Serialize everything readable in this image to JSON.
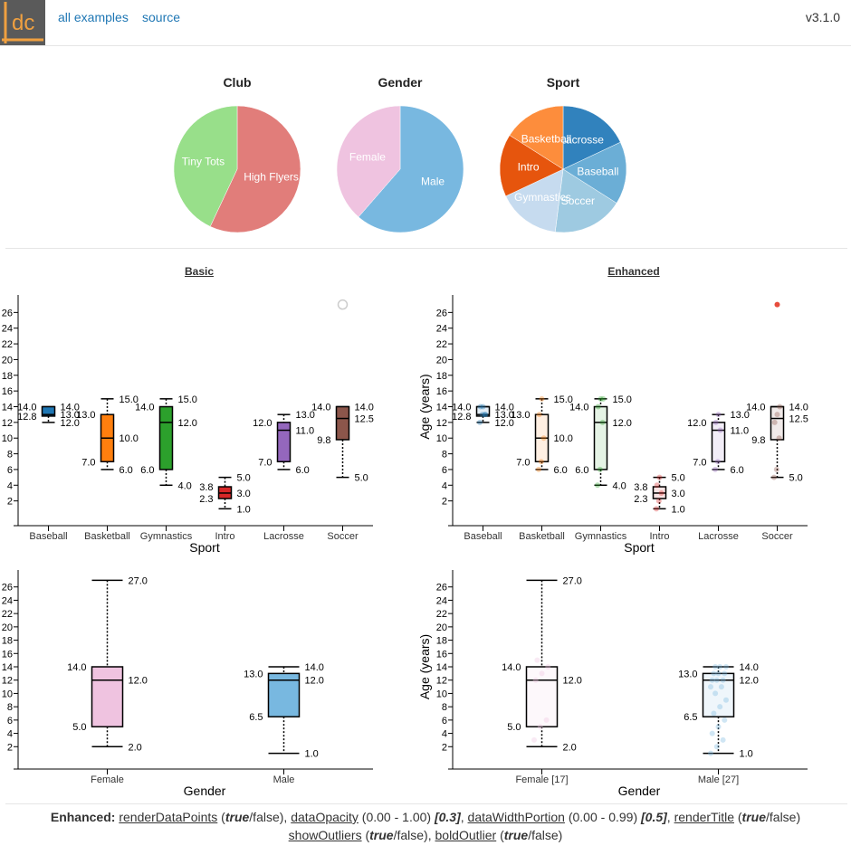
{
  "header": {
    "logo_text": "dc",
    "links": [
      "all examples",
      "source"
    ],
    "version": "v3.1.0"
  },
  "pies": [
    {
      "title": "Club",
      "slices": [
        {
          "label": "High Flyers",
          "value": 57,
          "color": "#e17d7a"
        },
        {
          "label": "Tiny Tots",
          "value": 43,
          "color": "#98df8a"
        }
      ]
    },
    {
      "title": "Gender",
      "slices": [
        {
          "label": "Male",
          "value": 61.4,
          "color": "#78b8e0"
        },
        {
          "label": "Female",
          "value": 38.6,
          "color": "#efc3e0"
        }
      ]
    },
    {
      "title": "Sport",
      "slices": [
        {
          "label": "Lacrosse",
          "value": 18,
          "color": "#3182bd"
        },
        {
          "label": "Baseball",
          "value": 16,
          "color": "#6baed6"
        },
        {
          "label": "Soccer",
          "value": 18,
          "color": "#9ecae1"
        },
        {
          "label": "Gymnastics",
          "value": 16,
          "color": "#c6dbef"
        },
        {
          "label": "Intro",
          "value": 16,
          "color": "#e6550d"
        },
        {
          "label": "Basketball",
          "value": 16,
          "color": "#fd8d3c"
        }
      ]
    }
  ],
  "sections": {
    "basic": "Basic",
    "enhanced": "Enhanced"
  },
  "chart_data": [
    {
      "type": "box",
      "name": "basic-sport",
      "xlabel": "Sport",
      "ylabel": "",
      "ylim": [
        0,
        28
      ],
      "yticks": [
        2,
        4,
        6,
        8,
        10,
        12,
        14,
        16,
        18,
        20,
        22,
        24,
        26
      ],
      "boxes": [
        {
          "cat": "Baseball",
          "color": "#1f77b4",
          "min": 12.0,
          "q1": 12.8,
          "median": 13.0,
          "q3": 14.0,
          "max": 14.0,
          "labels": {
            "min": "12.0",
            "q1": "12.8",
            "median": "13.0",
            "q3": "14.0",
            "max": "14.0"
          }
        },
        {
          "cat": "Basketball",
          "color": "#ff7f0e",
          "min": 6.0,
          "q1": 7.0,
          "median": 10.0,
          "q3": 13.0,
          "max": 15.0,
          "labels": {
            "min": "6.0",
            "q1": "7.0",
            "median": "10.0",
            "q3": "13.0",
            "max": "15.0"
          }
        },
        {
          "cat": "Gymnastics",
          "color": "#2ca02c",
          "min": 4.0,
          "q1": 6.0,
          "median": 12.0,
          "q3": 14.0,
          "max": 15.0,
          "labels": {
            "min": "4.0",
            "q1": "6.0",
            "median": "12.0",
            "q3": "14.0",
            "max": "15.0"
          }
        },
        {
          "cat": "Intro",
          "color": "#d62728",
          "min": 1.0,
          "q1": 2.3,
          "median": 3.0,
          "q3": 3.8,
          "max": 5.0,
          "labels": {
            "min": "1.0",
            "q1": "2.3",
            "median": "3.0",
            "q3": "3.8",
            "max": "5.0"
          }
        },
        {
          "cat": "Lacrosse",
          "color": "#9467bd",
          "min": 6.0,
          "q1": 7.0,
          "median": 11.0,
          "q3": 12.0,
          "max": 13.0,
          "labels": {
            "min": "6.0",
            "q1": "7.0",
            "median": "11.0",
            "q3": "12.0",
            "max": "13.0"
          }
        },
        {
          "cat": "Soccer",
          "color": "#8c564b",
          "min": 5.0,
          "q1": 9.8,
          "median": 12.5,
          "q3": 14.0,
          "max": 14.0,
          "labels": {
            "min": "5.0",
            "q1": "9.8",
            "median": "12.5",
            "q3": "14.0",
            "max": "14.0"
          },
          "outliers": [
            27
          ]
        }
      ]
    },
    {
      "type": "box",
      "name": "enhanced-sport",
      "xlabel": "Sport",
      "ylabel": "Age (years)",
      "ylim": [
        0,
        28
      ],
      "yticks": [
        2,
        4,
        6,
        8,
        10,
        12,
        14,
        16,
        18,
        20,
        22,
        24,
        26
      ],
      "boxes": [
        {
          "cat": "Baseball",
          "color": "#1f77b4",
          "min": 12.0,
          "q1": 12.8,
          "median": 13.0,
          "q3": 14.0,
          "max": 14.0,
          "labels": {
            "min": "12.0",
            "q1": "12.8",
            "median": "13.0",
            "q3": "14.0",
            "max": "14.0"
          },
          "points": [
            12,
            13,
            13,
            14,
            14,
            13
          ]
        },
        {
          "cat": "Basketball",
          "color": "#ff7f0e",
          "min": 6.0,
          "q1": 7.0,
          "median": 10.0,
          "q3": 13.0,
          "max": 15.0,
          "labels": {
            "min": "6.0",
            "q1": "7.0",
            "median": "10.0",
            "q3": "13.0",
            "max": "15.0"
          },
          "points": [
            6,
            7,
            10,
            13,
            15
          ]
        },
        {
          "cat": "Gymnastics",
          "color": "#2ca02c",
          "min": 4.0,
          "q1": 6.0,
          "median": 12.0,
          "q3": 14.0,
          "max": 15.0,
          "labels": {
            "min": "4.0",
            "q1": "6.0",
            "median": "12.0",
            "q3": "14.0",
            "max": "15.0"
          },
          "points": [
            4,
            6,
            12,
            14,
            15,
            15
          ]
        },
        {
          "cat": "Intro",
          "color": "#d62728",
          "min": 1.0,
          "q1": 2.3,
          "median": 3.0,
          "q3": 3.8,
          "max": 5.0,
          "labels": {
            "min": "1.0",
            "q1": "2.3",
            "median": "3.0",
            "q3": "3.8",
            "max": "5.0"
          },
          "points": [
            1,
            2,
            3,
            4,
            5
          ]
        },
        {
          "cat": "Lacrosse",
          "color": "#9467bd",
          "min": 6.0,
          "q1": 7.0,
          "median": 11.0,
          "q3": 12.0,
          "max": 13.0,
          "labels": {
            "min": "6.0",
            "q1": "7.0",
            "median": "11.0",
            "q3": "12.0",
            "max": "13.0"
          },
          "points": [
            6,
            7,
            11,
            12,
            13
          ]
        },
        {
          "cat": "Soccer",
          "color": "#8c564b",
          "min": 5.0,
          "q1": 9.8,
          "median": 12.5,
          "q3": 14.0,
          "max": 14.0,
          "labels": {
            "min": "5.0",
            "q1": "9.8",
            "median": "12.5",
            "q3": "14.0",
            "max": "14.0"
          },
          "points": [
            5,
            6,
            10,
            12,
            13,
            14
          ],
          "outliers": [
            27
          ]
        }
      ]
    },
    {
      "type": "box",
      "name": "basic-gender",
      "xlabel": "Gender",
      "ylabel": "",
      "ylim": [
        0,
        28
      ],
      "yticks": [
        2,
        4,
        6,
        8,
        10,
        12,
        14,
        16,
        18,
        20,
        22,
        24,
        26
      ],
      "boxes": [
        {
          "cat": "Female",
          "color": "#efc3e0",
          "min": 2.0,
          "q1": 5.0,
          "median": 12.0,
          "q3": 14.0,
          "max": 27.0,
          "labels": {
            "min": "2.0",
            "q1": "5.0",
            "median": "12.0",
            "q3": "14.0",
            "max": "27.0"
          }
        },
        {
          "cat": "Male",
          "color": "#78b8e0",
          "min": 1.0,
          "q1": 6.5,
          "median": 12.0,
          "q3": 13.0,
          "max": 14.0,
          "labels": {
            "min": "1.0",
            "q1": "6.5",
            "median": "12.0",
            "q3": "13.0",
            "max": "14.0"
          }
        }
      ]
    },
    {
      "type": "box",
      "name": "enhanced-gender",
      "xlabel": "Gender",
      "ylabel": "Age (years)",
      "ylim": [
        0,
        28
      ],
      "yticks": [
        2,
        4,
        6,
        8,
        10,
        12,
        14,
        16,
        18,
        20,
        22,
        24,
        26
      ],
      "boxes": [
        {
          "cat": "Female [17]",
          "color": "#efc3e0",
          "min": 2.0,
          "q1": 5.0,
          "median": 12.0,
          "q3": 14.0,
          "max": 27.0,
          "labels": {
            "min": "2.0",
            "q1": "5.0",
            "median": "12.0",
            "q3": "14.0",
            "max": "27.0"
          },
          "points": [
            3,
            5,
            6,
            12,
            13,
            14,
            15
          ],
          "open": true
        },
        {
          "cat": "Male [27]",
          "color": "#78b8e0",
          "min": 1.0,
          "q1": 6.5,
          "median": 12.0,
          "q3": 13.0,
          "max": 14.0,
          "labels": {
            "min": "1.0",
            "q1": "6.5",
            "median": "12.0",
            "q3": "13.0",
            "max": "14.0"
          },
          "points": [
            1,
            2,
            3,
            4,
            5,
            6,
            7,
            8,
            9,
            10,
            11,
            11,
            12,
            12,
            12,
            13,
            13,
            13,
            14,
            14,
            14
          ],
          "open": true
        }
      ]
    }
  ],
  "footer": {
    "enhanced_label": "Enhanced:",
    "items": [
      {
        "key": "renderDataPoints",
        "rest_pre": " (",
        "em": "true",
        "rest_post": "/false), "
      },
      {
        "key": "dataOpacity",
        "rest_pre": " (0.00 - 1.00) ",
        "em": "[0.3]",
        "rest_post": ", "
      },
      {
        "key": "dataWidthPortion",
        "rest_pre": " (0.00 - 0.99) ",
        "em": "[0.5]",
        "rest_post": ", "
      },
      {
        "key": "renderTitle",
        "rest_pre": " (",
        "em": "true",
        "rest_post": "/false)"
      },
      {
        "key": "showOutliers",
        "rest_pre": " (",
        "em": "true",
        "rest_post": "/false), "
      },
      {
        "key": "boldOutlier",
        "rest_pre": " (",
        "em": "true",
        "rest_post": "/false)"
      }
    ]
  }
}
